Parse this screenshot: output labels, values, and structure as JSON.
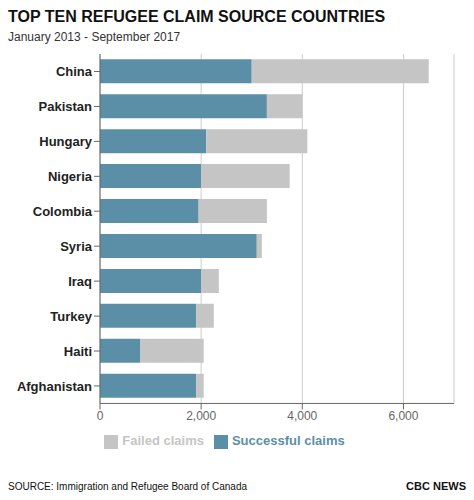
{
  "chart_data": {
    "type": "bar",
    "title": "TOP TEN REFUGEE CLAIM SOURCE COUNTRIES",
    "subtitle": "January 2013 - September 2017",
    "orientation": "horizontal",
    "stacked": true,
    "categories": [
      "China",
      "Pakistan",
      "Hungary",
      "Nigeria",
      "Colombia",
      "Syria",
      "Iraq",
      "Turkey",
      "Haiti",
      "Afghanistan"
    ],
    "series": [
      {
        "name": "Successful claims",
        "color": "#5b8fa8",
        "values": [
          3000,
          3300,
          2100,
          2000,
          1950,
          3100,
          2000,
          1900,
          800,
          1900
        ]
      },
      {
        "name": "Failed claims",
        "color": "#c5c5c5",
        "values": [
          3500,
          700,
          2000,
          1750,
          1350,
          100,
          350,
          350,
          1250,
          150
        ]
      }
    ],
    "xlim": [
      0,
      7000
    ],
    "xticks": [
      0,
      {
        "value": 2000,
        "label": "2,000"
      },
      {
        "value": 4000,
        "label": "4,000"
      },
      {
        "value": 6000,
        "label": "6,000"
      }
    ],
    "grid": true,
    "legend": "bottom",
    "annotations": [
      "SOURCE: Immigration and Refugee Board of Canada",
      "CBC NEWS"
    ]
  }
}
